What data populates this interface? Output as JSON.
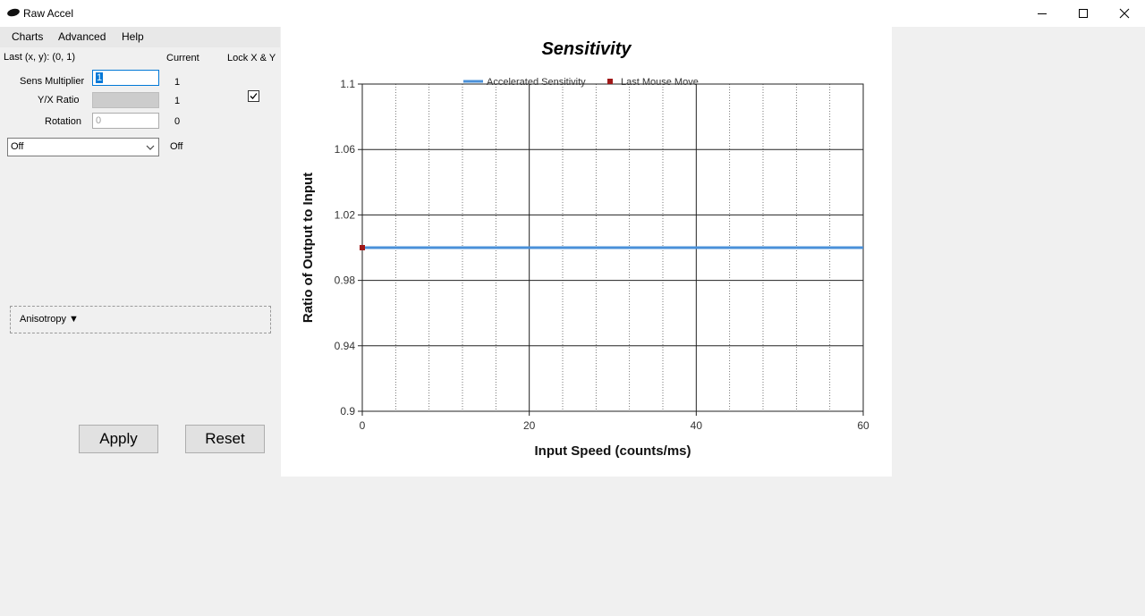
{
  "window": {
    "title": "Raw Accel",
    "controls": [
      "minimize",
      "maximize",
      "close"
    ]
  },
  "menu": [
    "Charts",
    "Advanced",
    "Help"
  ],
  "panel": {
    "last_xy": "Last (x, y): (0, 1)",
    "current_header": "Current",
    "lock_header": "Lock X & Y",
    "lock_checked": true,
    "rows": [
      {
        "label": "Sens Multiplier",
        "input": "1",
        "current": "1"
      },
      {
        "label": "Y/X Ratio",
        "input": "",
        "current": "1"
      },
      {
        "label": "Rotation",
        "input": "0",
        "current": "0"
      }
    ],
    "mode_select": {
      "value": "Off",
      "current": "Off"
    },
    "anisotropy": "Anisotropy ▼",
    "apply": "Apply",
    "reset": "Reset"
  },
  "chart_data": {
    "type": "line",
    "title": "Sensitivity",
    "xlabel": "Input Speed (counts/ms)",
    "ylabel": "Ratio of Output to Input",
    "xlim": [
      0,
      60
    ],
    "ylim": [
      0.9,
      1.1
    ],
    "x_ticks": [
      0,
      20,
      40,
      60
    ],
    "y_ticks": [
      0.9,
      0.94,
      0.98,
      1.02,
      1.06,
      1.1
    ],
    "x_minor_step": 4,
    "grid": true,
    "legend_position": "top",
    "series": [
      {
        "name": "Accelerated Sensitivity",
        "kind": "line",
        "color": "#4a90d9",
        "x": [
          0,
          60
        ],
        "y": [
          1,
          1
        ]
      },
      {
        "name": "Last Mouse Move",
        "kind": "point",
        "color": "#a01818",
        "x": [
          0
        ],
        "y": [
          1
        ]
      }
    ]
  }
}
